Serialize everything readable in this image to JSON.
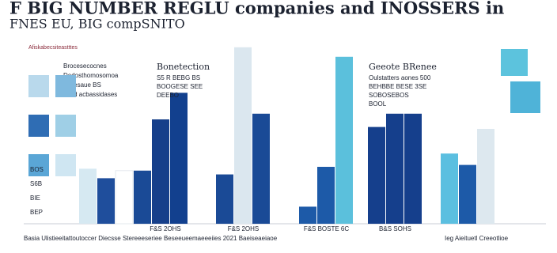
{
  "chart_data": {
    "type": "bar",
    "title": "F BIG NUMBER REGLU companies and INOSSERS in",
    "subtitle": "FNES EU, BIG compSNITO",
    "ylim": [
      0,
      100
    ],
    "groups": [
      {
        "label": "F&S 2OHS",
        "values": [
          29,
          24,
          28,
          28,
          55,
          69
        ],
        "colors": [
          "#d6e9f2",
          "#1f4e9c",
          "#ffffff",
          "#1a4a96",
          "#163f8a",
          "#12408e"
        ]
      },
      {
        "label": "F&S 2OHS",
        "values": [
          26,
          93,
          58
        ],
        "colors": [
          "#1a4a96",
          "#dbe7ef",
          "#1a4a96"
        ]
      },
      {
        "label": "F&S BOSTE 6C",
        "values": [
          9,
          30,
          88
        ],
        "colors": [
          "#1d5aa8",
          "#1d5aa8",
          "#5bc0dc"
        ]
      },
      {
        "label": "B&S SOHS",
        "values": [
          51,
          58,
          58
        ],
        "colors": [
          "#153f8c",
          "#153f8c",
          "#153f8c"
        ]
      },
      {
        "label": null,
        "values": [
          37,
          31,
          50
        ],
        "colors": [
          "#5bbfe0",
          "#1d5aa8",
          "#dde8ef"
        ]
      }
    ],
    "annotations": [
      {
        "title": "Bonetection",
        "lines": [
          "S5 R BEBG BS",
          "BOOGESE SEE",
          "DEEBO"
        ]
      },
      {
        "title": "Geeote BRenee",
        "lines": [
          "Oulstatters aones 500",
          "BEHBBE BESE 3SE",
          "SOBOSEBOS",
          "BOOL"
        ]
      }
    ],
    "left_panel": {
      "heading": "Afiskabecsiteastttes",
      "lines": [
        "Brocesecocnes",
        "Dedosthomosomoa",
        "Sebboesaue BS",
        "Babaed acbassidases"
      ],
      "tiles": [
        "BOS",
        "S6B",
        "BIE",
        "BEP"
      ]
    },
    "footer": [
      "Basia Ulistieeitattoutoccer Diecsse Stereeeseriee Beseeueemaeeeiies 2021 Baeiseaeiaoe",
      "Ieg Aieituetl Creeotlioe"
    ]
  }
}
